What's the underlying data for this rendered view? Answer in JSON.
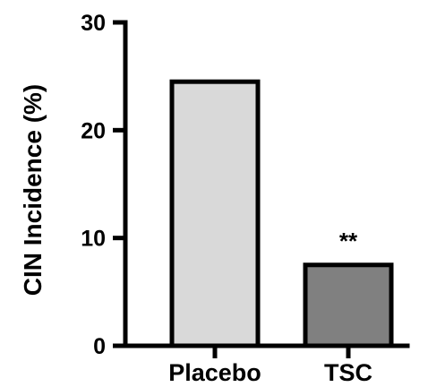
{
  "chart_data": {
    "type": "bar",
    "categories": [
      "Placebo",
      "TSC"
    ],
    "values": [
      24.5,
      7.5
    ],
    "bar_colors": [
      "#d9d9d9",
      "#808080"
    ],
    "ylabel": "CIN Incidence (%)",
    "xlabel": "",
    "title": "",
    "ylim": [
      0,
      30
    ],
    "yticks": [
      0,
      10,
      20,
      30
    ],
    "annotations": [
      {
        "category": "TSC",
        "text": "**"
      }
    ],
    "grid": false,
    "legend": "none"
  }
}
